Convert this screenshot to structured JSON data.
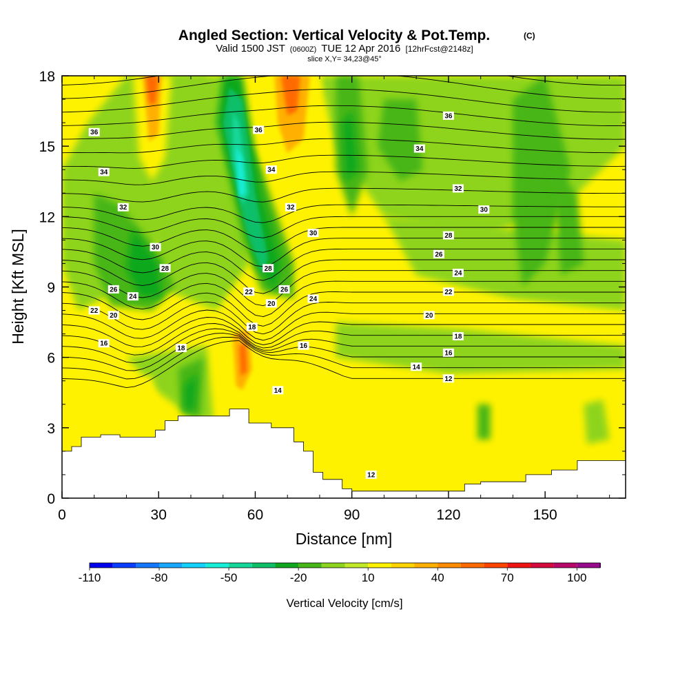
{
  "title": {
    "main": "Angled Section: Vertical Velocity & Pot.Temp.",
    "copyright": "(C)",
    "valid_prefix": "Valid 1500 JST",
    "valid_utc": "(0600Z)",
    "valid_date": "TUE 12 Apr 2016",
    "forecast": "[12hrFcst@2148z]",
    "slice": "slice X,Y= 34,23@45°"
  },
  "chart_data": {
    "type": "heatmap",
    "xlabel": "Distance [nm]",
    "ylabel": "Height [Kft MSL]",
    "xlim": [
      0,
      175
    ],
    "ylim": [
      0,
      18
    ],
    "x_ticks": [
      "0",
      "30",
      "60",
      "90",
      "120",
      "150"
    ],
    "x_tick_values": [
      0,
      30,
      60,
      90,
      120,
      150
    ],
    "y_ticks": [
      "0",
      "3",
      "6",
      "9",
      "12",
      "15",
      "18"
    ],
    "y_tick_values": [
      0,
      3,
      6,
      9,
      12,
      15,
      18
    ],
    "colorbar": {
      "title": "Vertical Velocity [cm/s]",
      "labels": [
        "-110",
        "-80",
        "-50",
        "-20",
        "10",
        "40",
        "70",
        "100"
      ],
      "label_values": [
        -110,
        -80,
        -50,
        -20,
        10,
        40,
        70,
        100
      ],
      "levels": [
        -110,
        -100,
        -90,
        -80,
        -70,
        -60,
        -50,
        -40,
        -30,
        -20,
        -10,
        0,
        10,
        20,
        30,
        40,
        50,
        60,
        70,
        80,
        90,
        100,
        110
      ],
      "colors": [
        "#0000ee",
        "#0a3dff",
        "#1478ff",
        "#18a8ff",
        "#14d2ff",
        "#16eed8",
        "#14d89a",
        "#0fbf68",
        "#11a81f",
        "#46b618",
        "#8ed41e",
        "#c2e82a",
        "#fff200",
        "#ffd400",
        "#ffb000",
        "#ff8c00",
        "#ff6a00",
        "#ff4400",
        "#f01414",
        "#d40a3c",
        "#b8086a",
        "#980a8c",
        "#6f0a96"
      ]
    },
    "field_background_color": "#fff200",
    "terrain": [
      [
        0,
        2.0
      ],
      [
        3,
        2.0
      ],
      [
        3,
        2.2
      ],
      [
        6,
        2.2
      ],
      [
        6,
        2.6
      ],
      [
        12,
        2.6
      ],
      [
        12,
        2.7
      ],
      [
        18,
        2.7
      ],
      [
        18,
        2.6
      ],
      [
        29,
        2.6
      ],
      [
        29,
        2.9
      ],
      [
        32,
        2.9
      ],
      [
        32,
        3.3
      ],
      [
        36,
        3.3
      ],
      [
        36,
        3.5
      ],
      [
        52,
        3.5
      ],
      [
        52,
        3.8
      ],
      [
        58,
        3.8
      ],
      [
        58,
        3.2
      ],
      [
        65,
        3.2
      ],
      [
        65,
        3.0
      ],
      [
        72,
        3.0
      ],
      [
        72,
        2.4
      ],
      [
        75,
        2.4
      ],
      [
        75,
        2.0
      ],
      [
        78,
        2.0
      ],
      [
        78,
        1.1
      ],
      [
        81,
        1.1
      ],
      [
        81,
        0.8
      ],
      [
        87,
        0.8
      ],
      [
        87,
        0.4
      ],
      [
        90,
        0.4
      ],
      [
        90,
        0.3
      ],
      [
        125,
        0.3
      ],
      [
        125,
        0.6
      ],
      [
        130,
        0.6
      ],
      [
        130,
        0.7
      ],
      [
        144,
        0.7
      ],
      [
        144,
        1.0
      ],
      [
        152,
        1.0
      ],
      [
        152,
        1.2
      ],
      [
        160,
        1.2
      ],
      [
        160,
        1.6
      ],
      [
        175,
        1.6
      ]
    ],
    "contour_levels": [
      12,
      14,
      16,
      18,
      20,
      22,
      24,
      26,
      28,
      30,
      32,
      34,
      36
    ],
    "contour_labels": [
      {
        "text": "36",
        "x": 10,
        "y": 15.6
      },
      {
        "text": "34",
        "x": 13,
        "y": 13.9
      },
      {
        "text": "32",
        "x": 19,
        "y": 12.4
      },
      {
        "text": "30",
        "x": 29,
        "y": 10.7
      },
      {
        "text": "28",
        "x": 32,
        "y": 9.8
      },
      {
        "text": "26",
        "x": 16,
        "y": 8.9
      },
      {
        "text": "24",
        "x": 22,
        "y": 8.6
      },
      {
        "text": "22",
        "x": 10,
        "y": 8.0
      },
      {
        "text": "20",
        "x": 16,
        "y": 7.8
      },
      {
        "text": "16",
        "x": 13,
        "y": 6.6
      },
      {
        "text": "18",
        "x": 37,
        "y": 6.4
      },
      {
        "text": "36",
        "x": 61,
        "y": 15.7
      },
      {
        "text": "34",
        "x": 65,
        "y": 14.0
      },
      {
        "text": "32",
        "x": 71,
        "y": 12.4
      },
      {
        "text": "30",
        "x": 78,
        "y": 11.3
      },
      {
        "text": "28",
        "x": 64,
        "y": 9.8
      },
      {
        "text": "22",
        "x": 58,
        "y": 8.8
      },
      {
        "text": "26",
        "x": 69,
        "y": 8.9
      },
      {
        "text": "20",
        "x": 65,
        "y": 8.3
      },
      {
        "text": "24",
        "x": 78,
        "y": 8.5
      },
      {
        "text": "18",
        "x": 59,
        "y": 7.3
      },
      {
        "text": "16",
        "x": 75,
        "y": 6.5
      },
      {
        "text": "14",
        "x": 67,
        "y": 4.6
      },
      {
        "text": "12",
        "x": 96,
        "y": 1.0
      },
      {
        "text": "36",
        "x": 120,
        "y": 16.3
      },
      {
        "text": "34",
        "x": 111,
        "y": 14.9
      },
      {
        "text": "32",
        "x": 123,
        "y": 13.2
      },
      {
        "text": "30",
        "x": 131,
        "y": 12.3
      },
      {
        "text": "28",
        "x": 120,
        "y": 11.2
      },
      {
        "text": "26",
        "x": 117,
        "y": 10.4
      },
      {
        "text": "24",
        "x": 123,
        "y": 9.6
      },
      {
        "text": "22",
        "x": 120,
        "y": 8.8
      },
      {
        "text": "20",
        "x": 114,
        "y": 7.8
      },
      {
        "text": "18",
        "x": 123,
        "y": 6.9
      },
      {
        "text": "16",
        "x": 120,
        "y": 6.2
      },
      {
        "text": "14",
        "x": 110,
        "y": 5.6
      },
      {
        "text": "12",
        "x": 120,
        "y": 5.1
      }
    ]
  }
}
